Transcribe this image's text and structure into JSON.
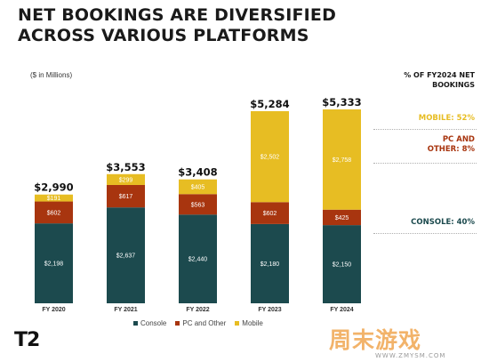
{
  "title": "NET BOOKINGS ARE DIVERSIFIED ACROSS VARIOUS PLATFORMS",
  "units_note": "($ in Millions)",
  "share_heading": "% OF FY2024 NET BOOKINGS",
  "shares": {
    "mobile": "MOBILE: 52%",
    "pc": "PC AND OTHER: 8%",
    "console": "CONSOLE: 40%"
  },
  "logo": "T2",
  "watermark": {
    "text": "周末游戏",
    "sub": "WWW.ZMYSM.COM"
  },
  "colors": {
    "console": "#1c4a4e",
    "pc": "#a8350f",
    "mobile": "#e7bd23"
  },
  "chart_data": {
    "type": "bar",
    "stacked": true,
    "categories": [
      "FY 2020",
      "FY 2021",
      "FY 2022",
      "FY 2023",
      "FY 2024"
    ],
    "series": [
      {
        "name": "Console",
        "values": [
          2198,
          2637,
          2440,
          2180,
          2150
        ],
        "labels": [
          "$2,198",
          "$2,637",
          "$2,440",
          "$2,180",
          "$2,150"
        ]
      },
      {
        "name": "PC and Other",
        "values": [
          602,
          617,
          563,
          602,
          425
        ],
        "labels": [
          "$602",
          "$617",
          "$563",
          "$602",
          "$425"
        ]
      },
      {
        "name": "Mobile",
        "values": [
          191,
          299,
          405,
          2502,
          2758
        ],
        "labels": [
          "$191",
          "$299",
          "$405",
          "$2,502",
          "$2,758"
        ]
      }
    ],
    "totals": [
      "$2,990",
      "$3,553",
      "$3,408",
      "$5,284",
      "$5,333"
    ],
    "ylim": [
      0,
      5333
    ],
    "grid": false,
    "legend_position": "bottom"
  }
}
